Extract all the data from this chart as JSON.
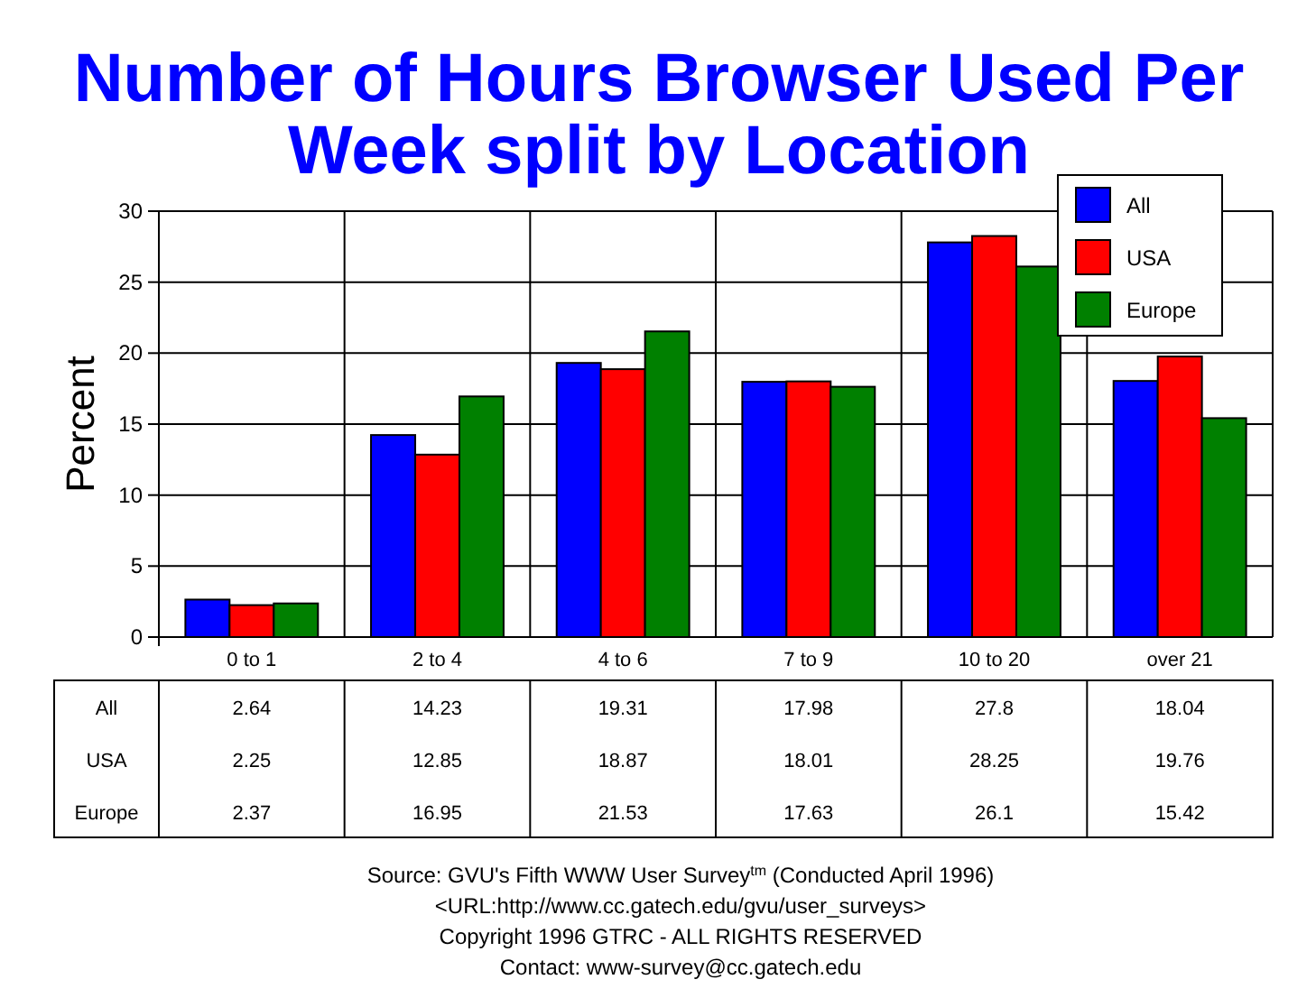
{
  "chart_data": {
    "type": "bar",
    "title": "Number of Hours Browser Used Per Week split by Location",
    "ylabel": "Percent",
    "categories": [
      "0 to 1",
      "2 to 4",
      "4 to 6",
      "7 to 9",
      "10 to 20",
      "over 21"
    ],
    "series": [
      {
        "name": "All",
        "color": "#0000ff",
        "values": [
          2.64,
          14.23,
          19.31,
          17.98,
          27.8,
          18.04
        ]
      },
      {
        "name": "USA",
        "color": "#ff0000",
        "values": [
          2.25,
          12.85,
          18.87,
          18.01,
          28.25,
          19.76
        ]
      },
      {
        "name": "Europe",
        "color": "#008000",
        "values": [
          2.37,
          16.95,
          21.53,
          17.63,
          26.1,
          15.42
        ]
      }
    ],
    "ylim": [
      0,
      30
    ],
    "yticks": [
      0,
      5,
      10,
      15,
      20,
      25,
      30
    ],
    "grid": true,
    "legend": "top right",
    "data_labels": true,
    "annotations": [
      "Source: GVU's Fifth WWW User Survey$^{tm}$  (Conducted April 1996)",
      "<URL:http://www.cc.gatech.edu/gvu/user_surveys>",
      "Copyright 1996 GTRC -  ALL RIGHTS RESERVED",
      "Contact: www-survey@cc.gatech.edu"
    ]
  }
}
